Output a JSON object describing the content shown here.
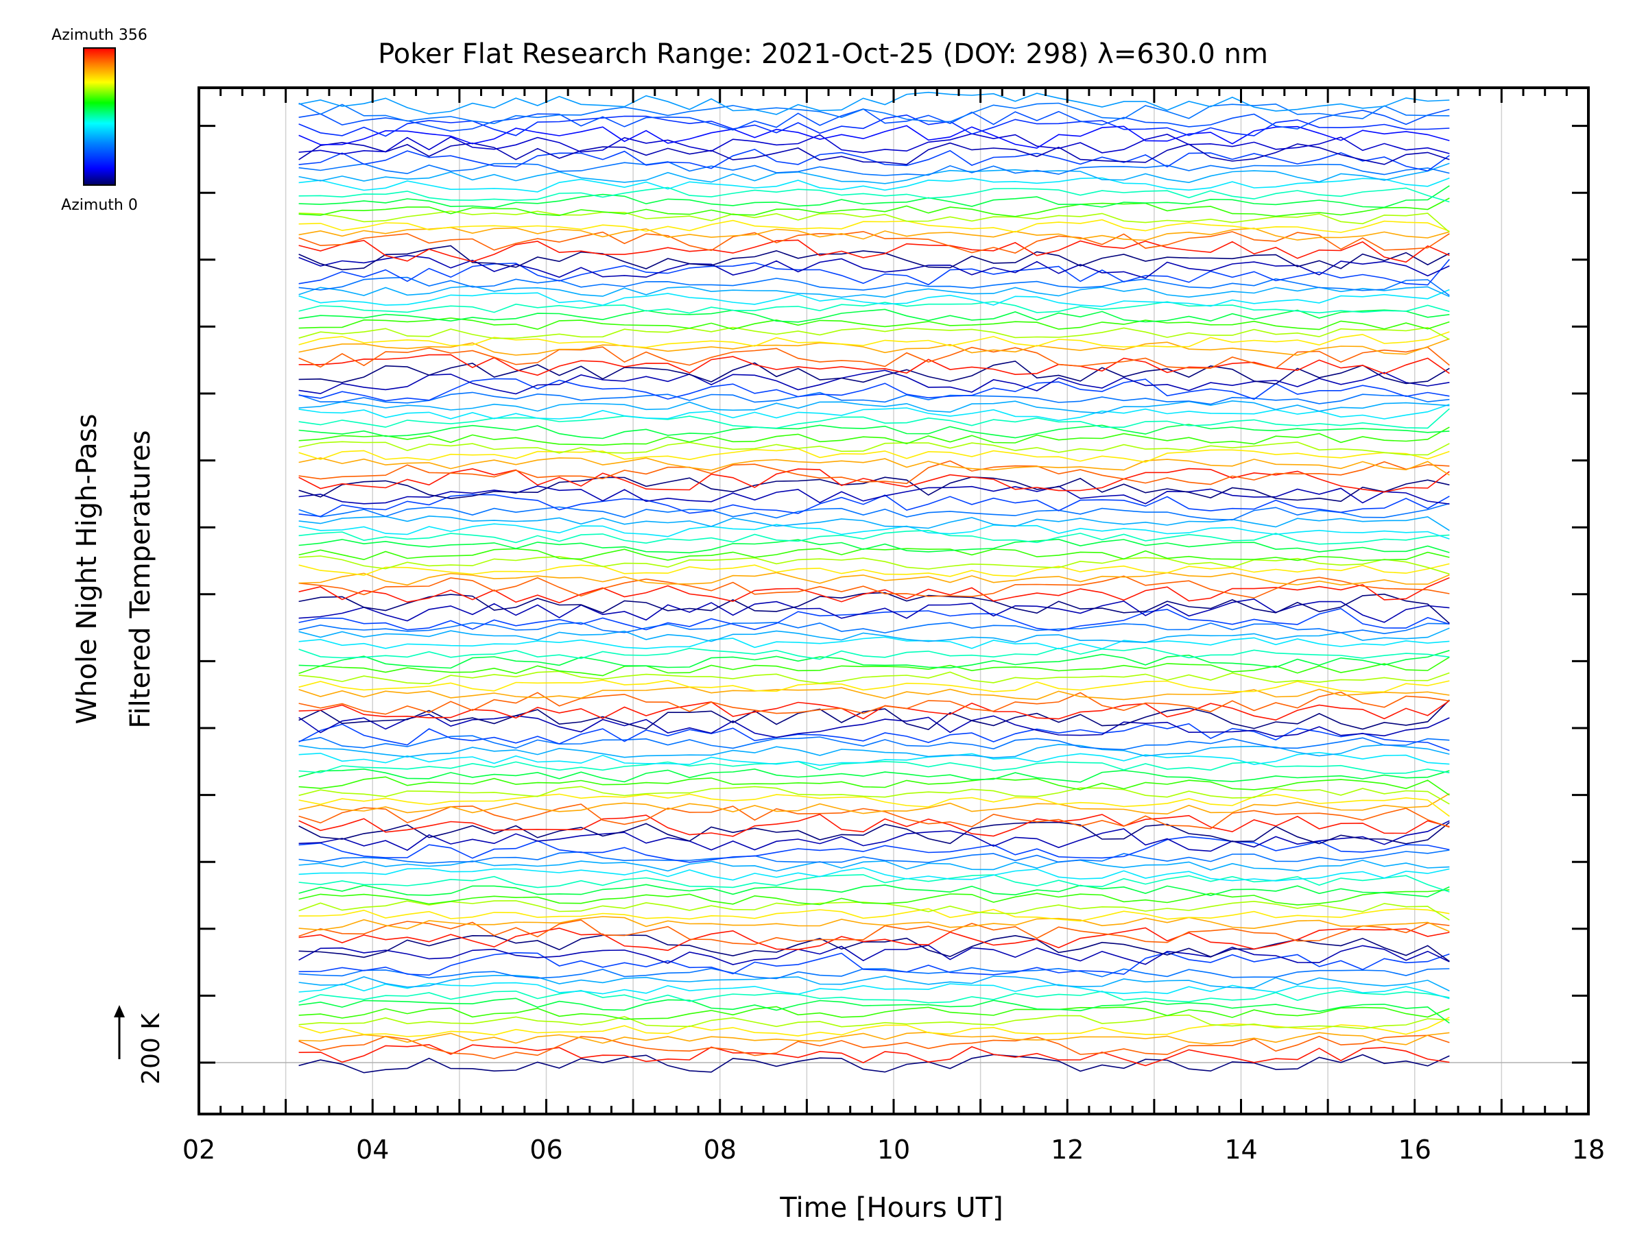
{
  "chart_data": {
    "type": "line",
    "title": "Poker Flat Research Range: 2021-Oct-25 (DOY: 298) λ=630.0 nm",
    "xlabel": "Time [Hours UT]",
    "ylabel_line1": "Whole Night High-Pass",
    "ylabel_line2": "Filtered Temperatures",
    "x_range": [
      2,
      18
    ],
    "x_ticks": [
      "02",
      "04",
      "06",
      "08",
      "10",
      "12",
      "14",
      "16",
      "18"
    ],
    "x_gridlines": [
      3,
      4,
      5,
      6,
      7,
      8,
      9,
      10,
      11,
      12,
      13,
      14,
      15,
      16,
      17
    ],
    "data_time_range": [
      3.15,
      16.45
    ],
    "sample_interval_hours": 0.25,
    "scale_label": "200 K",
    "colorbar": {
      "top_label": "Azimuth 356",
      "bottom_label": "Azimuth 0",
      "colors": [
        "#ff0000",
        "#ff8000",
        "#ffff00",
        "#00ff00",
        "#00ffff",
        "#0080ff",
        "#0000ff",
        "#000060"
      ]
    },
    "groups": 8,
    "lines_per_group": 14,
    "line_count": 112,
    "grid": true
  }
}
